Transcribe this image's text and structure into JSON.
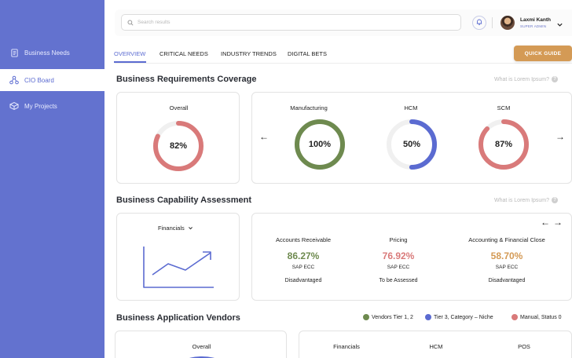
{
  "sidebar": {
    "items": [
      {
        "label": "Business Needs"
      },
      {
        "label": "CIO Board"
      },
      {
        "label": "My Projects"
      }
    ]
  },
  "topbar": {
    "search_placeholder": "Search results",
    "user_name": "Laxmi Kanth",
    "user_role": "SUPER ADMIN"
  },
  "tabs": [
    {
      "label": "OVERVIEW"
    },
    {
      "label": "CRITICAL NEEDS"
    },
    {
      "label": "INDUSTRY TRENDS"
    },
    {
      "label": "DIGITAL BETS"
    }
  ],
  "quick_guide_label": "QUICK GUIDE",
  "coverage": {
    "title": "Business Requirements Coverage",
    "help": "What is Lorem Ipsum?",
    "overall_label": "Overall",
    "overall_value": "82%",
    "overall_percent": 82,
    "overall_color": "#d97a7a",
    "items": [
      {
        "label": "Manufacturing",
        "value": "100%",
        "percent": 100,
        "color": "#6e8a4f"
      },
      {
        "label": "HCM",
        "value": "50%",
        "percent": 50,
        "color": "#5b6bd1"
      },
      {
        "label": "SCM",
        "value": "87%",
        "percent": 87,
        "color": "#d97a7a"
      }
    ]
  },
  "capability": {
    "title": "Business Capability Assessment",
    "help": "What is Lorem Ipsum?",
    "dropdown_label": "Financials",
    "metrics": [
      {
        "title": "Accounts Receivable",
        "value": "86.27%",
        "color": "#6e8a4f",
        "system": "SAP ECC",
        "status": "Disadvantaged"
      },
      {
        "title": "Pricing",
        "value": "76.92%",
        "color": "#d97a7a",
        "system": "SAP ECC",
        "status": "To be Assessed"
      },
      {
        "title": "Accounting & Financial Close",
        "value": "58.70%",
        "color": "#d49a55",
        "system": "SAP ECC",
        "status": "Disadvantaged"
      }
    ]
  },
  "vendors": {
    "title": "Business Application Vendors",
    "legend": [
      {
        "label": "Vendors Tier 1, 2",
        "color": "#6e8a4f"
      },
      {
        "label": "Tier 3, Category – Niche",
        "color": "#5b6bd1"
      },
      {
        "label": "Manual, Status 0",
        "color": "#d97a7a"
      }
    ],
    "overall_label": "Overall",
    "columns": [
      "Financials",
      "HCM",
      "POS"
    ]
  }
}
